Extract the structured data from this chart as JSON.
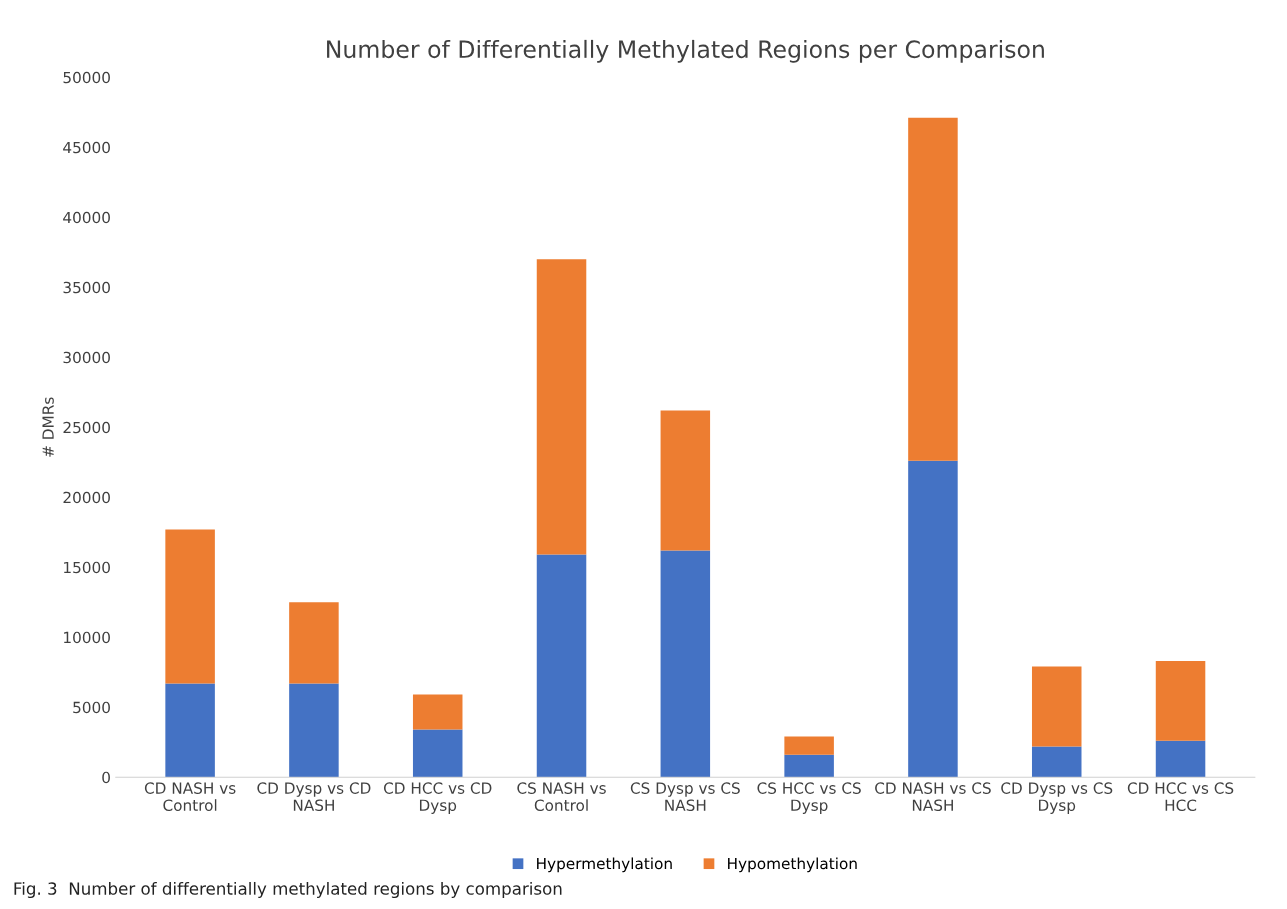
{
  "chart_data": {
    "type": "bar",
    "stacked": true,
    "title": "Number of Differentially Methylated Regions per Comparison",
    "ylabel": "# DMRs",
    "categories": [
      "CD NASH vs\nControl",
      "CD Dysp vs CD\nNASH",
      "CD HCC vs CD\nDysp",
      "CS NASH vs\nControl",
      "CS Dysp vs CS\nNASH",
      "CS HCC vs CS\nDysp",
      "CD NASH vs CS\nNASH",
      "CD Dysp vs CS\nDysp",
      "CD HCC vs CS\nHCC"
    ],
    "series": [
      {
        "name": "Hypermethylation",
        "color": "#4472c4",
        "values": [
          6700,
          6700,
          3400,
          15900,
          16200,
          1600,
          22600,
          2200,
          2600
        ]
      },
      {
        "name": "Hypomethylation",
        "color": "#ed7d31",
        "values": [
          11000,
          5800,
          2500,
          21100,
          10000,
          1300,
          24500,
          5700,
          5700
        ]
      }
    ],
    "ylim": [
      0,
      50000
    ],
    "yticks": [
      0,
      5000,
      10000,
      15000,
      20000,
      25000,
      30000,
      35000,
      40000,
      45000,
      50000
    ],
    "grid": false,
    "legend": "bottom",
    "annotations": [
      "Fig. 3  Number of differentially methylated regions by comparison"
    ]
  }
}
